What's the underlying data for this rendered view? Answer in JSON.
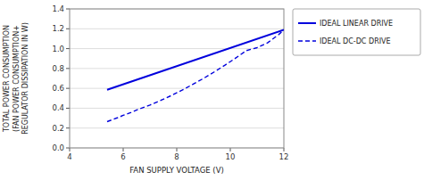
{
  "chart_data": {
    "type": "line",
    "title": "",
    "x_label": "FAN SUPPLY VOLTAGE (V)",
    "y_label": "TOTAL POWER CONSUMPTION\n(FAN POWER CONSUMPTION+\nREGULATOR DISSIPATION IN W)",
    "xlim": [
      4,
      12
    ],
    "ylim": [
      0,
      1.4
    ],
    "xticks": [
      4,
      6,
      8,
      10,
      12
    ],
    "yticks": [
      {
        "value": 0,
        "label": "0.0"
      },
      0.2,
      0.4,
      0.6,
      0.8,
      {
        "value": 1.0,
        "label": "1.0"
      },
      1.2,
      1.4
    ],
    "grid": true,
    "legend": "right",
    "series": [
      {
        "name": "IDEAL LINEAR DRIVE",
        "color": "#0000dd",
        "line_style": "solid",
        "x": [
          5.4,
          12.0
        ],
        "values": [
          0.585,
          1.19
        ]
      },
      {
        "name": "IDEAL DC-DC DRIVE",
        "color": "#0000dd",
        "line_style": "dashed",
        "x": [
          5.4,
          5.6,
          5.8,
          6.0,
          6.3,
          6.6,
          7.0,
          7.4,
          7.8,
          8.2,
          8.6,
          9.0,
          9.4,
          9.8,
          10.2,
          10.6,
          11.0,
          11.4,
          11.8,
          12.0
        ],
        "values": [
          0.265,
          0.285,
          0.305,
          0.328,
          0.358,
          0.392,
          0.432,
          0.478,
          0.528,
          0.582,
          0.64,
          0.7,
          0.765,
          0.833,
          0.905,
          0.98,
          1.01,
          1.06,
          1.14,
          1.19
        ]
      }
    ]
  }
}
